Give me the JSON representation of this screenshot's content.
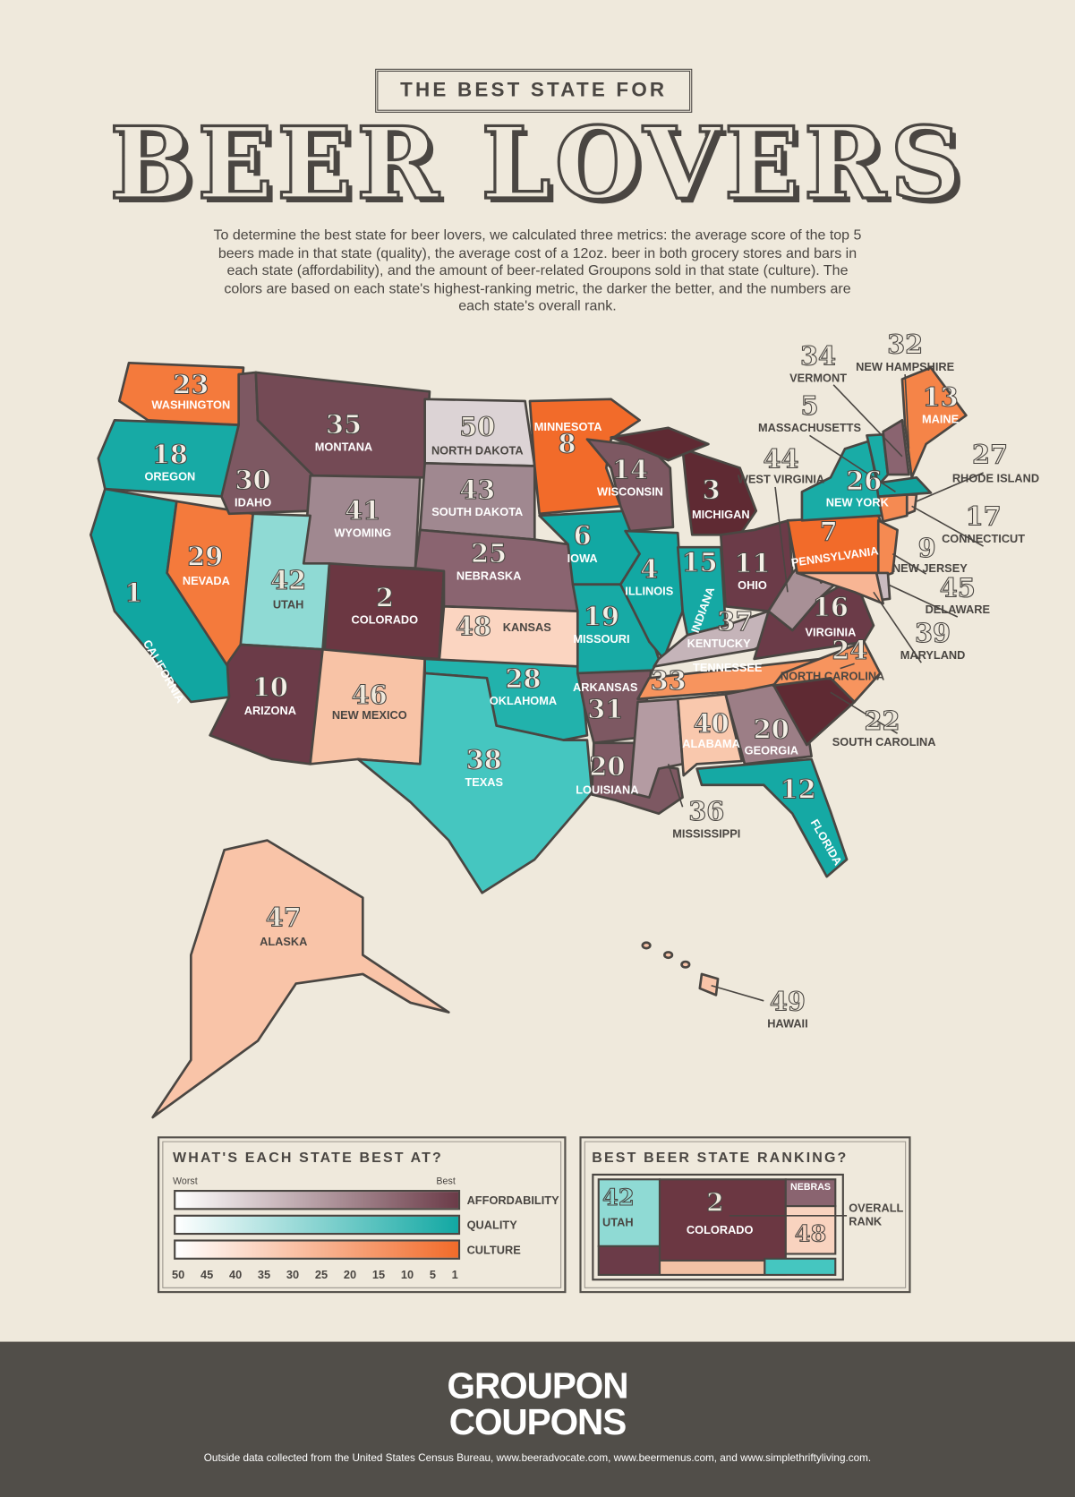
{
  "header": {
    "kicker": "THE BEST STATE FOR",
    "title": "BEER LOVERS",
    "intro": "To determine the best state for beer lovers, we calculated three metrics: the average score of the top 5 beers made in that state (quality), the average cost of a 12oz. beer in both grocery stores and bars in each state (affordability), and the amount of beer-related Groupons sold in that state (culture). The colors are based on each state's highest-ranking metric, the darker the better, and the numbers are each state's overall rank."
  },
  "colors": {
    "affordability": "#6b3b48",
    "quality": "#12a8a3",
    "culture": "#f26b2a"
  },
  "states": [
    {
      "id": "WA",
      "name": "WASHINGTON",
      "rank": "23",
      "metric": "culture",
      "color": "#f47a3c"
    },
    {
      "id": "OR",
      "name": "OREGON",
      "rank": "18",
      "metric": "quality",
      "color": "#17aaa5"
    },
    {
      "id": "CA",
      "name": "CALIFORNIA",
      "rank": "1",
      "metric": "quality",
      "color": "#11a6a1"
    },
    {
      "id": "NV",
      "name": "NEVADA",
      "rank": "29",
      "metric": "culture",
      "color": "#f47a3c"
    },
    {
      "id": "ID",
      "name": "IDAHO",
      "rank": "30",
      "metric": "affordability",
      "color": "#7d5862"
    },
    {
      "id": "MT",
      "name": "MONTANA",
      "rank": "35",
      "metric": "affordability",
      "color": "#744a55"
    },
    {
      "id": "WY",
      "name": "WYOMING",
      "rank": "41",
      "metric": "affordability",
      "color": "#a08890"
    },
    {
      "id": "UT",
      "name": "UTAH",
      "rank": "42",
      "metric": "quality",
      "color": "#8fdad4"
    },
    {
      "id": "CO",
      "name": "COLORADO",
      "rank": "2",
      "metric": "affordability",
      "color": "#6b3742"
    },
    {
      "id": "AZ",
      "name": "ARIZONA",
      "rank": "10",
      "metric": "affordability",
      "color": "#6b3b48"
    },
    {
      "id": "NM",
      "name": "NEW MEXICO",
      "rank": "46",
      "metric": "culture",
      "color": "#f8c3a6"
    },
    {
      "id": "ND",
      "name": "NORTH DAKOTA",
      "rank": "50",
      "metric": "affordability",
      "color": "#dcd3d5"
    },
    {
      "id": "SD",
      "name": "SOUTH DAKOTA",
      "rank": "43",
      "metric": "affordability",
      "color": "#a08890"
    },
    {
      "id": "NE",
      "name": "NEBRASKA",
      "rank": "25",
      "metric": "affordability",
      "color": "#8a6470"
    },
    {
      "id": "KS",
      "name": "KANSAS",
      "rank": "48",
      "metric": "culture",
      "color": "#fbd5c1"
    },
    {
      "id": "OK",
      "name": "OKLAHOMA",
      "rank": "28",
      "metric": "quality",
      "color": "#22b2ac"
    },
    {
      "id": "TX",
      "name": "TEXAS",
      "rank": "38",
      "metric": "quality",
      "color": "#45c6c0"
    },
    {
      "id": "MN",
      "name": "MINNESOTA",
      "rank": "8",
      "metric": "culture",
      "color": "#f26b2a"
    },
    {
      "id": "IA",
      "name": "IOWA",
      "rank": "6",
      "metric": "quality",
      "color": "#12a8a3"
    },
    {
      "id": "MO",
      "name": "MISSOURI",
      "rank": "19",
      "metric": "quality",
      "color": "#17aaa5"
    },
    {
      "id": "AR",
      "name": "ARKANSAS",
      "rank": "31",
      "metric": "affordability",
      "color": "#7d5862"
    },
    {
      "id": "LA",
      "name": "LOUISIANA",
      "rank": "20",
      "metric": "affordability",
      "color": "#7d5862"
    },
    {
      "id": "WI",
      "name": "WISCONSIN",
      "rank": "14",
      "metric": "affordability",
      "color": "#7d5862"
    },
    {
      "id": "IL",
      "name": "ILLINOIS",
      "rank": "4",
      "metric": "quality",
      "color": "#12a8a3"
    },
    {
      "id": "MI",
      "name": "MICHIGAN",
      "rank": "3",
      "metric": "affordability",
      "color": "#5f2a33"
    },
    {
      "id": "IN",
      "name": "INDIANA",
      "rank": "15",
      "metric": "quality",
      "color": "#15a9a4"
    },
    {
      "id": "OH",
      "name": "OHIO",
      "rank": "11",
      "metric": "affordability",
      "color": "#6b3b48"
    },
    {
      "id": "KY",
      "name": "KENTUCKY",
      "rank": "37",
      "metric": "affordability",
      "color": "#c5b4b9"
    },
    {
      "id": "TN",
      "name": "TENNESSEE",
      "rank": "33",
      "metric": "culture",
      "color": "#f7945e"
    },
    {
      "id": "MS",
      "name": "MISSISSIPPI",
      "rank": "36",
      "metric": "affordability",
      "color": "#b49ba2"
    },
    {
      "id": "AL",
      "name": "ALABAMA",
      "rank": "40",
      "metric": "culture",
      "color": "#f9c8ad"
    },
    {
      "id": "GA",
      "name": "GEORGIA",
      "rank": "20",
      "metric": "affordability",
      "color": "#9c7e86"
    },
    {
      "id": "FL",
      "name": "FLORIDA",
      "rank": "12",
      "metric": "quality",
      "color": "#15a9a4"
    },
    {
      "id": "SC",
      "name": "SOUTH CAROLINA",
      "rank": "22",
      "metric": "affordability",
      "color": "#5f2a33"
    },
    {
      "id": "NC",
      "name": "NORTH CAROLINA",
      "rank": "24",
      "metric": "culture",
      "color": "#f7945e"
    },
    {
      "id": "VA",
      "name": "VIRGINIA",
      "rank": "16",
      "metric": "affordability",
      "color": "#6b3b48"
    },
    {
      "id": "WV",
      "name": "WEST VIRGINIA",
      "rank": "44",
      "metric": "affordability",
      "color": "#a89096"
    },
    {
      "id": "PA",
      "name": "PENNSYLVANIA",
      "rank": "7",
      "metric": "culture",
      "color": "#f26b2a"
    },
    {
      "id": "NY",
      "name": "NEW YORK",
      "rank": "26",
      "metric": "quality",
      "color": "#19aca6"
    },
    {
      "id": "NJ",
      "name": "NEW JERSEY",
      "rank": "9",
      "metric": "culture",
      "color": "#f58a52"
    },
    {
      "id": "DE",
      "name": "DELAWARE",
      "rank": "45",
      "metric": "affordability",
      "color": "#c9babf"
    },
    {
      "id": "MD",
      "name": "MARYLAND",
      "rank": "39",
      "metric": "culture",
      "color": "#f8b594"
    },
    {
      "id": "VT",
      "name": "VERMONT",
      "rank": "34",
      "metric": "quality",
      "color": "#19aca6"
    },
    {
      "id": "NH",
      "name": "NEW HAMPSHIRE",
      "rank": "32",
      "metric": "affordability",
      "color": "#8a6470"
    },
    {
      "id": "MA",
      "name": "MASSACHUSETTS",
      "rank": "5",
      "metric": "quality",
      "color": "#12a39e"
    },
    {
      "id": "ME",
      "name": "MAINE",
      "rank": "13",
      "metric": "culture",
      "color": "#f58448"
    },
    {
      "id": "CT",
      "name": "CONNECTICUT",
      "rank": "17",
      "metric": "culture",
      "color": "#f58a52"
    },
    {
      "id": "RI",
      "name": "RHODE ISLAND",
      "rank": "27",
      "metric": "culture",
      "color": "#f8b594"
    },
    {
      "id": "AK",
      "name": "ALASKA",
      "rank": "47",
      "metric": "culture",
      "color": "#f9c4a8"
    },
    {
      "id": "HI",
      "name": "HAWAII",
      "rank": "49",
      "metric": "culture",
      "color": "#f9c4a8"
    }
  ],
  "legend": {
    "title": "WHAT'S EACH STATE BEST AT?",
    "worst": "Worst",
    "best": "Best",
    "bars": [
      {
        "label": "AFFORDABILITY",
        "color": "#6b3b48"
      },
      {
        "label": "QUALITY",
        "color": "#12a8a3"
      },
      {
        "label": "CULTURE",
        "color": "#f26b2a"
      }
    ],
    "scale": [
      "50",
      "45",
      "40",
      "35",
      "30",
      "25",
      "20",
      "15",
      "10",
      "5",
      "1"
    ]
  },
  "ranking_key": {
    "title": "BEST BEER STATE RANKING?",
    "utah_rank": "42",
    "utah": "UTAH",
    "colorado_rank": "2",
    "colorado": "COLORADO",
    "nebraska": "NEBRAS",
    "kansas_rank": "48",
    "overall_rank": "OVERALL RANK"
  },
  "footer": {
    "logo_line1": "GROUPON",
    "logo_line2": "COUPONS",
    "credit": "Outside data collected from the United States Census Bureau, www.beeradvocate.com, www.beermenus.com, and www.simplethriftyliving.com."
  }
}
